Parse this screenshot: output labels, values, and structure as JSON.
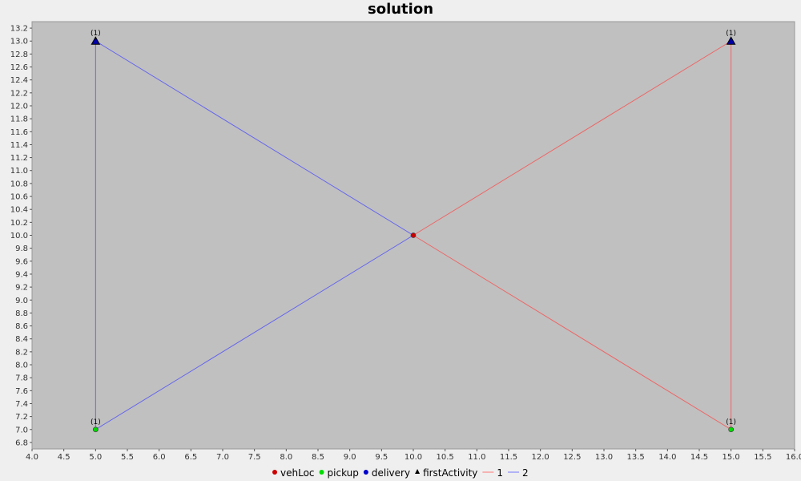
{
  "chart_data": {
    "type": "scatter",
    "title": "solution",
    "xlabel": "",
    "ylabel": "",
    "xlim": [
      4.0,
      16.0
    ],
    "ylim": [
      6.7,
      13.3
    ],
    "x_ticks": [
      "4.0",
      "4.5",
      "5.0",
      "5.5",
      "6.0",
      "6.5",
      "7.0",
      "7.5",
      "8.0",
      "8.5",
      "9.0",
      "9.5",
      "10.0",
      "10.5",
      "11.0",
      "11.5",
      "12.0",
      "12.5",
      "13.0",
      "13.5",
      "14.0",
      "14.5",
      "15.0",
      "15.5",
      "16.0"
    ],
    "y_ticks": [
      "6.8",
      "7.0",
      "7.2",
      "7.4",
      "7.6",
      "7.8",
      "8.0",
      "8.2",
      "8.4",
      "8.6",
      "8.8",
      "9.0",
      "9.2",
      "9.4",
      "9.6",
      "9.8",
      "10.0",
      "10.2",
      "10.4",
      "10.6",
      "10.8",
      "11.0",
      "11.2",
      "11.4",
      "11.6",
      "11.8",
      "12.0",
      "12.2",
      "12.4",
      "12.6",
      "12.8",
      "13.0",
      "13.2"
    ],
    "grid": false,
    "legend_position": "bottom",
    "plot_background": "#c0c0c0",
    "legend": [
      {
        "label": "vehLoc",
        "marker": "circle",
        "color": "#cc0000"
      },
      {
        "label": "pickup",
        "marker": "circle",
        "color": "#00dd00"
      },
      {
        "label": "delivery",
        "marker": "circle",
        "color": "#0000cc"
      },
      {
        "label": "firstActivity",
        "marker": "triangle",
        "color": "#000000"
      },
      {
        "label": "1",
        "marker": "line",
        "color": "#ff7777"
      },
      {
        "label": "2",
        "marker": "line",
        "color": "#7777ff"
      }
    ],
    "routes": [
      {
        "name": "1",
        "color": "#ee6666",
        "points": [
          [
            10.0,
            10.0
          ],
          [
            15.0,
            13.0
          ],
          [
            15.0,
            7.0
          ],
          [
            10.0,
            10.0
          ]
        ]
      },
      {
        "name": "2",
        "color": "#6666ee",
        "points": [
          [
            10.0,
            10.0
          ],
          [
            5.0,
            7.0
          ],
          [
            5.0,
            13.0
          ],
          [
            10.0,
            10.0
          ]
        ]
      }
    ],
    "points": [
      {
        "type": "vehLoc",
        "x": 10.0,
        "y": 10.0,
        "label": ""
      },
      {
        "type": "pickup",
        "x": 5.0,
        "y": 7.0,
        "label": "(1)"
      },
      {
        "type": "pickup",
        "x": 15.0,
        "y": 7.0,
        "label": "(1)"
      },
      {
        "type": "firstActivity",
        "x": 5.0,
        "y": 13.0,
        "label": "(1)"
      },
      {
        "type": "firstActivity",
        "x": 15.0,
        "y": 13.0,
        "label": "(1)"
      }
    ]
  }
}
